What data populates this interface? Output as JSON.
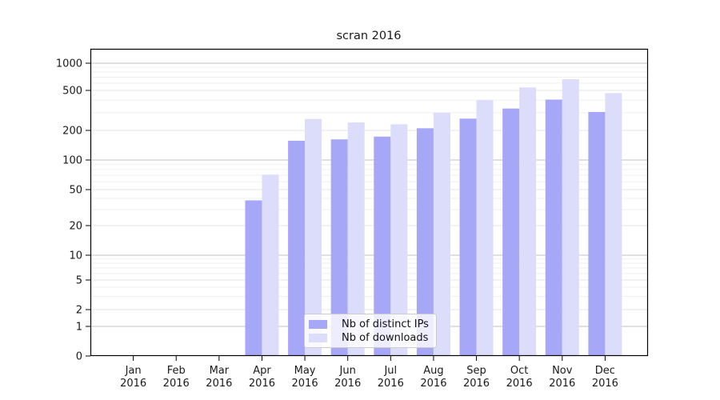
{
  "chart_data": {
    "type": "bar",
    "title": "scran 2016",
    "categories": [
      "Jan 2016",
      "Feb 2016",
      "Mar 2016",
      "Apr 2016",
      "May 2016",
      "Jun 2016",
      "Jul 2016",
      "Aug 2016",
      "Sep 2016",
      "Oct 2016",
      "Nov 2016",
      "Dec 2016"
    ],
    "series": [
      {
        "name": "Nb of distinct IPs",
        "color": "#a7a7f8",
        "values": [
          0,
          0,
          0,
          38,
          157,
          162,
          173,
          210,
          262,
          330,
          405,
          305
        ]
      },
      {
        "name": "Nb of downloads",
        "color": "#dcdcfb",
        "values": [
          0,
          0,
          0,
          71,
          260,
          240,
          230,
          300,
          400,
          540,
          665,
          470
        ]
      }
    ],
    "xlabel": "",
    "ylabel": "",
    "yscale": "symlog",
    "yticks": [
      0,
      1,
      2,
      5,
      10,
      20,
      50,
      100,
      200,
      500,
      1000
    ],
    "ylim": [
      0,
      1400
    ],
    "grid": "both",
    "legend_position": "lower-center-inside"
  },
  "colors": {
    "major_grid": "#c2c2c2",
    "labeled_grid": "#e4e4e4",
    "minor_grid": "#efefef",
    "axis": "#1a1a1a"
  }
}
